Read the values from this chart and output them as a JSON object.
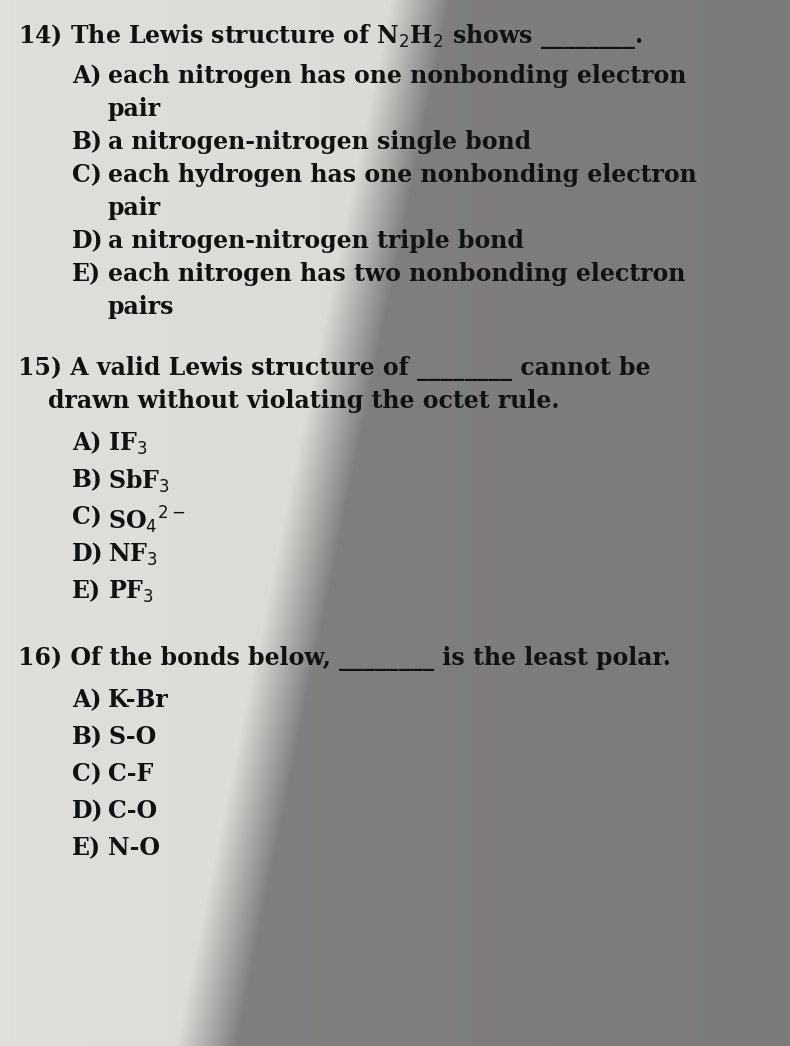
{
  "bg_color": "#d8d5d0",
  "text_color": "#111111",
  "font_size_stem": 17,
  "font_size_option": 17,
  "q14_stem": "14) The Lewis structure of N$_2$H$_2$ shows ________.",
  "q14_options": [
    [
      "A)",
      "each nitrogen has one nonbonding electron",
      "pair"
    ],
    [
      "B)",
      "a nitrogen-nitrogen single bond",
      null
    ],
    [
      "C)",
      "each hydrogen has one nonbonding electron",
      "pair"
    ],
    [
      "D)",
      "a nitrogen-nitrogen triple bond",
      null
    ],
    [
      "E)",
      "each nitrogen has two nonbonding electron",
      "pairs"
    ]
  ],
  "q15_stem1": "15) A valid Lewis structure of ________ cannot be",
  "q15_stem2": "drawn without violating the octet rule.",
  "q15_options": [
    [
      "A)",
      "IF$_3$"
    ],
    [
      "B)",
      "SbF$_3$"
    ],
    [
      "C)",
      "SO$_4$$^{2-}$"
    ],
    [
      "D)",
      "NF$_3$"
    ],
    [
      "E)",
      "PF$_3$"
    ]
  ],
  "q16_stem": "16) Of the bonds below, ________ is the least polar.",
  "q16_options": [
    [
      "A)",
      "K-Br"
    ],
    [
      "B)",
      "S-O"
    ],
    [
      "C)",
      "C-F"
    ],
    [
      "D)",
      "C-O"
    ],
    [
      "E)",
      "N-O"
    ]
  ],
  "shadow_color": [
    0.45,
    0.44,
    0.42
  ],
  "paper_color": "#e0ddd8",
  "paper_light": "#f0eeea"
}
